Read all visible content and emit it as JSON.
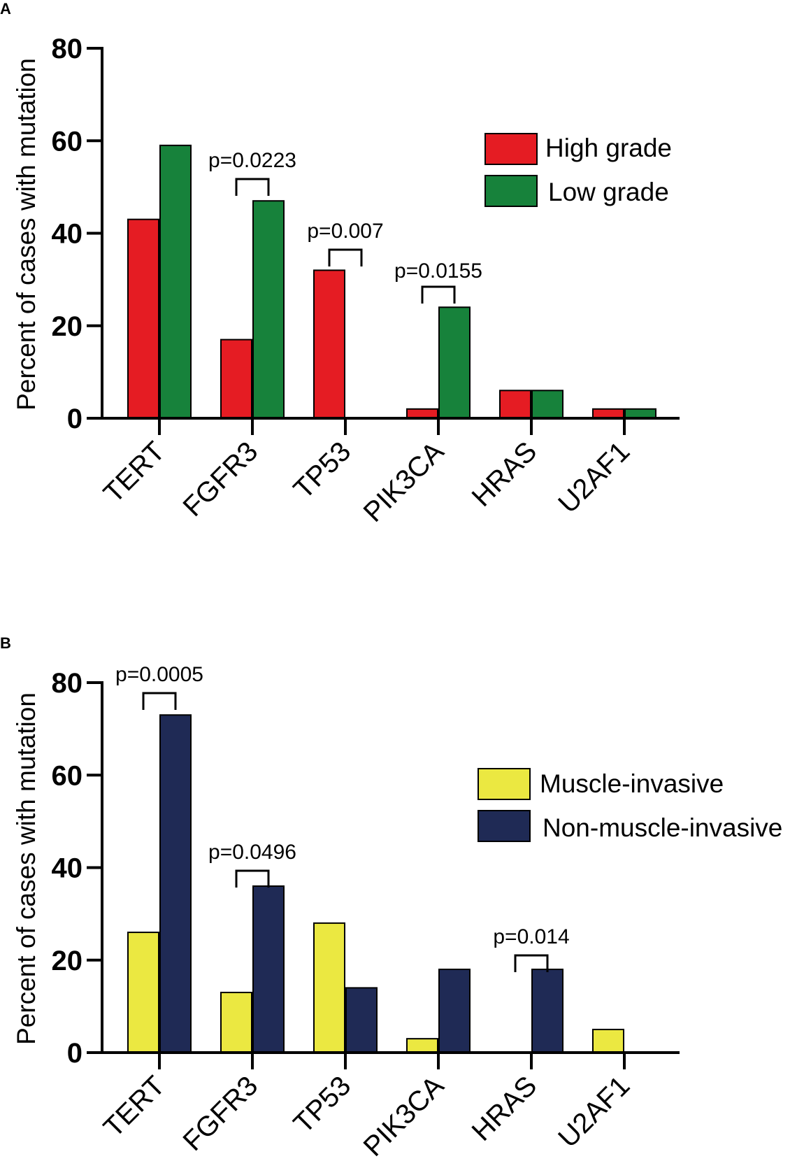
{
  "colors": {
    "high_grade": "#e51c23",
    "low_grade": "#17823b",
    "muscle_invasive": "#ebe841",
    "non_muscle_invasive": "#1f2a55",
    "axis": "#000000"
  },
  "chart_data": [
    {
      "panel": "A",
      "type": "bar",
      "ylabel": "Percent of cases with mutation",
      "ylim": [
        0,
        80
      ],
      "yticks": [
        0,
        20,
        40,
        60,
        80
      ],
      "categories": [
        "TERT",
        "FGFR3",
        "TP53",
        "PIK3CA",
        "HRAS",
        "U2AF1"
      ],
      "series": [
        {
          "name": "High grade",
          "color_key": "high_grade",
          "values": [
            43,
            17,
            32,
            2,
            6,
            2
          ]
        },
        {
          "name": "Low grade",
          "color_key": "low_grade",
          "values": [
            59,
            47,
            0,
            24,
            6,
            2
          ]
        }
      ],
      "annotations": [
        {
          "category_index": 1,
          "text": "p=0.0223"
        },
        {
          "category_index": 2,
          "text": "p=0.007"
        },
        {
          "category_index": 3,
          "text": "p=0.0155"
        }
      ],
      "legend_position": "top-right"
    },
    {
      "panel": "B",
      "type": "bar",
      "ylabel": "Percent of cases with mutation",
      "ylim": [
        0,
        80
      ],
      "yticks": [
        0,
        20,
        40,
        60,
        80
      ],
      "categories": [
        "TERT",
        "FGFR3",
        "TP53",
        "PIK3CA",
        "HRAS",
        "U2AF1"
      ],
      "series": [
        {
          "name": "Muscle-invasive",
          "color_key": "muscle_invasive",
          "values": [
            26,
            13,
            28,
            3,
            0,
            5
          ]
        },
        {
          "name": "Non-muscle-invasive",
          "color_key": "non_muscle_invasive",
          "values": [
            73,
            36,
            14,
            18,
            18,
            0
          ]
        }
      ],
      "annotations": [
        {
          "category_index": 0,
          "text": "p=0.0005"
        },
        {
          "category_index": 1,
          "text": "p=0.0496"
        },
        {
          "category_index": 4,
          "text": "p=0.014"
        }
      ],
      "legend_position": "top-right"
    }
  ]
}
